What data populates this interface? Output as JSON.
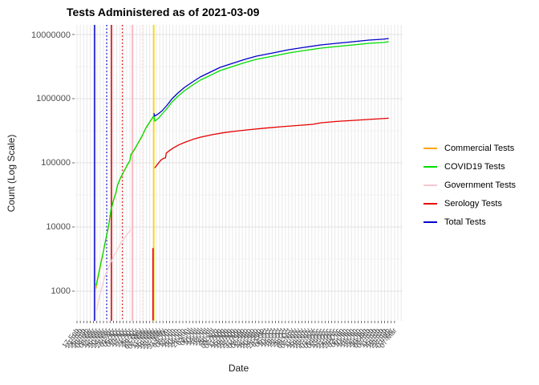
{
  "title": "Tests Administered as of 2021-03-09",
  "x_axis": {
    "label": "Date",
    "tick_labels": [
      "17-Feb",
      "21-Feb",
      "25-Feb",
      "29-Feb",
      "04-Mar",
      "08-Mar",
      "12-Mar",
      "16-Mar",
      "20-Mar",
      "24-Mar",
      "28-Mar",
      "01-Apr",
      "05-Apr",
      "09-Apr",
      "13-Apr",
      "17-Apr",
      "21-Apr",
      "25-Apr",
      "29-Apr",
      "03-May",
      "07-May",
      "11-May",
      "15-May",
      "19-May",
      "23-May",
      "27-May",
      "31-May",
      "04-Jun",
      "08-Jun",
      "12-Jun",
      "16-Jun",
      "20-Jun",
      "24-Jun",
      "28-Jun",
      "02-Jul",
      "06-Jul",
      "10-Jul",
      "14-Jul",
      "18-Jul",
      "22-Jul",
      "26-Jul",
      "30-Jul",
      "03-Aug",
      "07-Aug",
      "11-Aug",
      "15-Aug",
      "19-Aug",
      "23-Aug",
      "27-Aug",
      "31-Aug",
      "04-Sep",
      "08-Sep",
      "12-Sep",
      "16-Sep",
      "20-Sep",
      "24-Sep",
      "28-Sep",
      "02-Oct",
      "06-Oct",
      "10-Oct",
      "14-Oct",
      "18-Oct",
      "22-Oct",
      "26-Oct",
      "30-Oct",
      "03-Nov",
      "07-Nov",
      "11-Nov",
      "15-Nov",
      "19-Nov",
      "23-Nov",
      "27-Nov",
      "01-Dec",
      "05-Dec",
      "09-Dec",
      "13-Dec",
      "17-Dec",
      "21-Dec",
      "25-Dec",
      "29-Dec",
      "02-Jan",
      "06-Jan",
      "10-Jan",
      "14-Jan",
      "18-Jan",
      "22-Jan",
      "26-Jan",
      "30-Jan",
      "03-Feb",
      "07-Feb",
      "11-Feb",
      "15-Feb",
      "19-Feb",
      "23-Feb",
      "27-Feb",
      "03-Mar",
      "07-Mar"
    ],
    "tick_step_days": 4
  },
  "y_axis": {
    "label": "Count (Log Scale)",
    "tick_labels": [
      "10000000",
      "1000000",
      "100000",
      "10000",
      "1000"
    ],
    "tick_values": [
      10000000,
      1000000,
      100000,
      10000,
      1000
    ]
  },
  "legend": {
    "items": [
      {
        "label": "Commercial Tests",
        "color": "#FFA500"
      },
      {
        "label": "COVID19 Tests",
        "color": "#00DD00"
      },
      {
        "label": "Government Tests",
        "color": "#F5C8CF"
      },
      {
        "label": "Serology Tests",
        "color": "#E60000"
      },
      {
        "label": "Total Tests",
        "color": "#0000C8"
      }
    ]
  },
  "chart_data": {
    "type": "line",
    "title": "Tests Administered as of 2021-03-09",
    "xlabel": "Date",
    "ylabel": "Count (Log Scale)",
    "y_scale": "log10",
    "ylim": [
      350,
      13000000
    ],
    "x_unit": "days since first x tick (17-Feb-2020), 4 days per tick",
    "grid": true,
    "legend_position": "right",
    "series": [
      {
        "name": "Commercial Tests",
        "color": "#FFA500",
        "width": 1.2,
        "points": [
          [
            23,
            1100
          ],
          [
            26,
            1750
          ],
          [
            29,
            2700
          ],
          [
            32,
            4100
          ],
          [
            35,
            6500
          ],
          [
            38,
            9800
          ],
          [
            41,
            18000
          ],
          [
            44,
            25200
          ],
          [
            47,
            33800
          ],
          [
            49,
            44000
          ],
          [
            52,
            55000
          ],
          [
            56,
            69500
          ],
          [
            60,
            87500
          ],
          [
            64,
            107000
          ],
          [
            65,
            131000
          ],
          [
            69,
            156000
          ],
          [
            74,
            202000
          ],
          [
            79,
            262000
          ],
          [
            83,
            340000
          ],
          [
            88,
            428000
          ],
          [
            93,
            540000
          ]
        ]
      },
      {
        "name": "COVID19 Tests",
        "color": "#00DD00",
        "width": 1.3,
        "points": [
          [
            23,
            1220
          ],
          [
            26,
            1830
          ],
          [
            29,
            2820
          ],
          [
            32,
            4220
          ],
          [
            35,
            6680
          ],
          [
            38,
            10000
          ],
          [
            41,
            18300
          ],
          [
            44,
            25900
          ],
          [
            47,
            34500
          ],
          [
            49,
            44700
          ],
          [
            52,
            56200
          ],
          [
            56,
            70800
          ],
          [
            60,
            89100
          ],
          [
            64,
            109000
          ],
          [
            65,
            133000
          ],
          [
            69,
            158500
          ],
          [
            74,
            205000
          ],
          [
            79,
            266000
          ],
          [
            83,
            345000
          ],
          [
            88,
            434000
          ],
          [
            93,
            546000
          ],
          [
            94,
            447000
          ],
          [
            98,
            487000
          ],
          [
            103,
            579000
          ],
          [
            109,
            708000
          ],
          [
            115,
            891000
          ],
          [
            122,
            1090000
          ],
          [
            130,
            1330000
          ],
          [
            140,
            1630000
          ],
          [
            149,
            1940000
          ],
          [
            161,
            2300000
          ],
          [
            173,
            2740000
          ],
          [
            188,
            3160000
          ],
          [
            203,
            3650000
          ],
          [
            217,
            4100000
          ],
          [
            237,
            4600000
          ],
          [
            256,
            5160000
          ],
          [
            275,
            5620000
          ],
          [
            295,
            6130000
          ],
          [
            314,
            6490000
          ],
          [
            334,
            6880000
          ],
          [
            353,
            7290000
          ],
          [
            370,
            7500000
          ],
          [
            377,
            7720000
          ]
        ]
      },
      {
        "name": "Government Tests",
        "color": "#F5C8CF",
        "width": 1.2,
        "points": [
          [
            24,
            500
          ],
          [
            27,
            820
          ],
          [
            30,
            1120
          ],
          [
            33,
            1590
          ],
          [
            36,
            2000
          ],
          [
            40,
            2660
          ],
          [
            44,
            3450
          ],
          [
            48,
            4220
          ],
          [
            52,
            5310
          ],
          [
            56,
            6310
          ],
          [
            60,
            7500
          ],
          [
            63,
            8410
          ],
          [
            65,
            9200
          ]
        ]
      },
      {
        "name": "Serology Tests",
        "color": "#E60000",
        "width": 1.3,
        "points": [
          [
            94,
            83000
          ],
          [
            96,
            90000
          ],
          [
            99,
            101000
          ],
          [
            102,
            112000
          ],
          [
            105,
            118000
          ],
          [
            107,
            119000
          ],
          [
            108,
            142000
          ],
          [
            112,
            156000
          ],
          [
            117,
            172000
          ],
          [
            123,
            190000
          ],
          [
            130,
            208000
          ],
          [
            140,
            232000
          ],
          [
            150,
            252000
          ],
          [
            163,
            274000
          ],
          [
            178,
            296000
          ],
          [
            193,
            313000
          ],
          [
            210,
            330000
          ],
          [
            228,
            348000
          ],
          [
            247,
            365000
          ],
          [
            266,
            381000
          ],
          [
            285,
            398000
          ],
          [
            295,
            420000
          ],
          [
            314,
            441000
          ],
          [
            334,
            458000
          ],
          [
            353,
            474000
          ],
          [
            377,
            495000
          ]
        ]
      },
      {
        "name": "Total Tests",
        "color": "#0000C8",
        "width": 1.3,
        "points": [
          [
            93,
            592000
          ],
          [
            94,
            535000
          ],
          [
            98,
            576000
          ],
          [
            103,
            649000
          ],
          [
            109,
            794000
          ],
          [
            115,
            1000000
          ],
          [
            122,
            1223000
          ],
          [
            130,
            1496000
          ],
          [
            140,
            1830000
          ],
          [
            149,
            2175000
          ],
          [
            161,
            2586000
          ],
          [
            173,
            3073000
          ],
          [
            188,
            3548000
          ],
          [
            203,
            4097000
          ],
          [
            217,
            4597000
          ],
          [
            237,
            5158000
          ],
          [
            256,
            5788000
          ],
          [
            275,
            6310000
          ],
          [
            295,
            6879000
          ],
          [
            314,
            7286000
          ],
          [
            334,
            7718000
          ],
          [
            353,
            8175000
          ],
          [
            370,
            8450000
          ],
          [
            377,
            8660000
          ]
        ]
      }
    ],
    "vlines": [
      {
        "name": "total-start-line",
        "color": "#0000C8",
        "style": "solid",
        "width": 1.5,
        "day": 21.3
      },
      {
        "name": "total-dotted-line",
        "color": "#0000C8",
        "style": "dotted",
        "width": 1.3,
        "day": 35.9
      },
      {
        "name": "serology-solid-line",
        "color": "#E60000",
        "style": "solid",
        "width": 1.6,
        "day": 41.7
      },
      {
        "name": "serology-dotted-line",
        "color": "#E60000",
        "style": "dotted",
        "width": 1.3,
        "day": 54.8
      },
      {
        "name": "government-solid-line",
        "color": "#FFB6C1",
        "style": "solid",
        "width": 1.8,
        "day": 66.9
      },
      {
        "name": "government-dotted-line",
        "color": "#FFD9DE",
        "style": "dotted",
        "width": 1.5,
        "day": 79.0
      },
      {
        "name": "commercial-gold-line",
        "color": "#FFD700",
        "style": "solid",
        "width": 1.8,
        "day": 92.8
      }
    ],
    "segments": [
      {
        "name": "serology-initial-spike",
        "color": "#E60000",
        "width": 1.6,
        "day": 91.9,
        "from": 350,
        "to": 4700
      }
    ]
  }
}
